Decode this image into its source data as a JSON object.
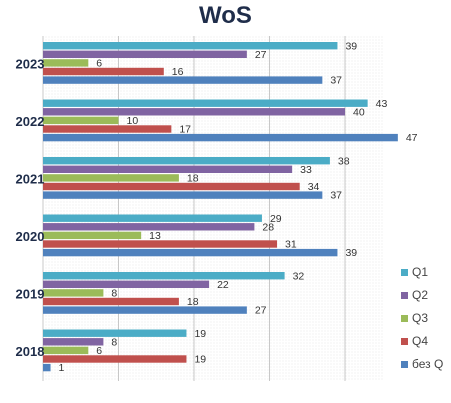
{
  "chart_data": {
    "type": "bar",
    "orientation": "horizontal",
    "title": "WoS",
    "categories": [
      "2023",
      "2022",
      "2021",
      "2020",
      "2019",
      "2018"
    ],
    "series": [
      {
        "name": "Q1",
        "color": "#4bacc6",
        "values": [
          39,
          43,
          38,
          29,
          32,
          19
        ]
      },
      {
        "name": "Q2",
        "color": "#8064a2",
        "values": [
          27,
          40,
          33,
          28,
          22,
          8
        ]
      },
      {
        "name": "Q3",
        "color": "#9bbb59",
        "values": [
          6,
          10,
          18,
          13,
          8,
          6
        ]
      },
      {
        "name": "Q4",
        "color": "#c0504d",
        "values": [
          16,
          17,
          34,
          31,
          18,
          19
        ]
      },
      {
        "name": "без Q",
        "color": "#4f81bd",
        "values": [
          37,
          47,
          37,
          39,
          27,
          1
        ]
      }
    ],
    "xlim": [
      0,
      50
    ],
    "grid": "vertical",
    "legend_position": "right",
    "data_labels": true
  }
}
